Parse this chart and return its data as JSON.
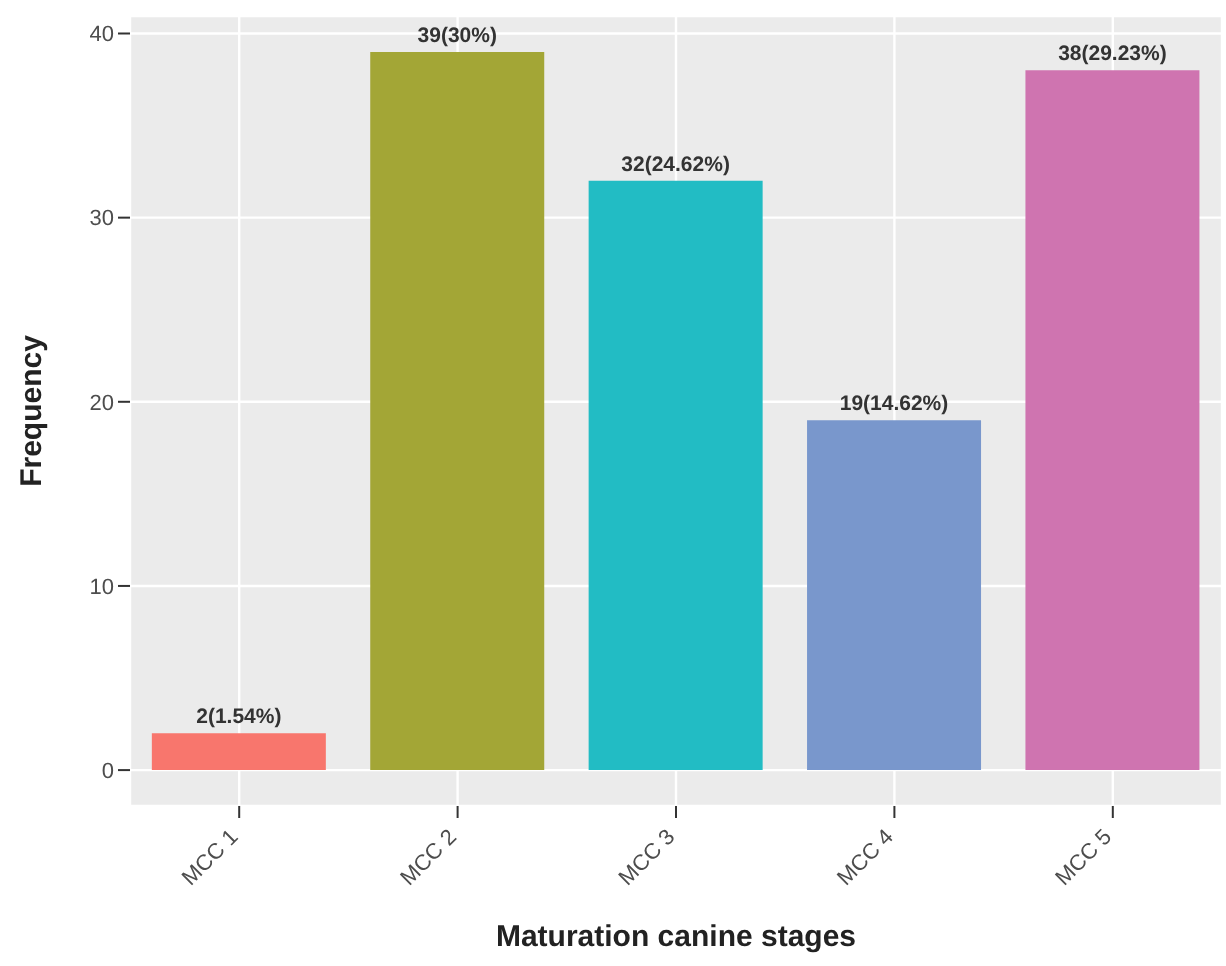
{
  "chart_data": {
    "type": "bar",
    "xlabel": "Maturation canine stages",
    "ylabel": "Frequency",
    "categories": [
      "MCC 1",
      "MCC 2",
      "MCC 3",
      "MCC 4",
      "MCC 5"
    ],
    "values": [
      2,
      39,
      32,
      19,
      38
    ],
    "colors": [
      "#f8766d",
      "#a3a636",
      "#22bcc4",
      "#7997cc",
      "#cf74b0"
    ],
    "value_labels": [
      "2(1.54%)",
      "39(30%)",
      "32(24.62%)",
      "19(14.62%)",
      "38(29.23%)"
    ],
    "ylim": [
      -1.95,
      40.95
    ],
    "yticks": [
      0,
      10,
      20,
      30,
      40
    ],
    "grid": true
  }
}
